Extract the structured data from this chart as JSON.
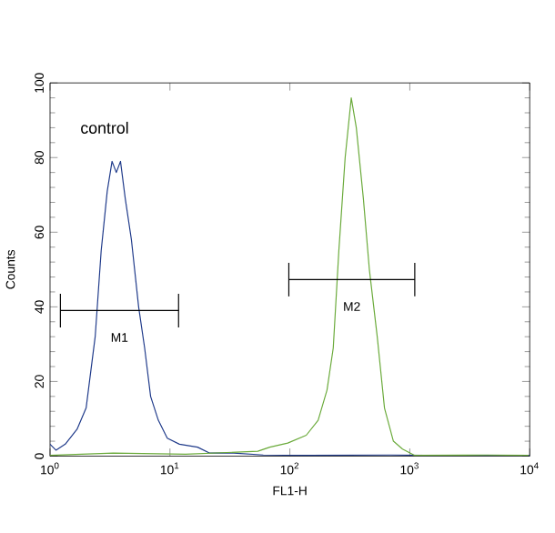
{
  "chart_data": {
    "type": "line",
    "xlabel": "FL1-H",
    "ylabel": "Counts",
    "log": "x",
    "xlim": [
      1,
      10000
    ],
    "ylim": [
      0,
      100
    ],
    "xticks": [
      {
        "value": 1,
        "label": "10$^{0}$"
      },
      {
        "value": 10,
        "label": "10$^{1}$"
      },
      {
        "value": 100,
        "label": "10$^{2}$"
      },
      {
        "value": 1000,
        "label": "10$^{3}$"
      },
      {
        "value": 10000,
        "label": "10$^{4}$"
      }
    ],
    "yticks": [
      0,
      20,
      40,
      60,
      80,
      100
    ],
    "grid": false,
    "marker": "none",
    "line_style": "solid",
    "series": [
      {
        "color": "#1f3a8a",
        "x": [
          1,
          1.12,
          1.34,
          1.68,
          2.0,
          2.38,
          2.67,
          3.0,
          3.29,
          3.57,
          3.87,
          4.24,
          4.77,
          5.48,
          6.15,
          6.9,
          8.0,
          9.5,
          12,
          17,
          21.5,
          34,
          60,
          137,
          690,
          1370,
          10000
        ],
        "values": [
          3.2,
          1.6,
          3.2,
          7.2,
          12.9,
          32,
          55,
          71,
          79,
          76,
          79,
          69,
          58,
          40,
          29,
          16,
          9.6,
          4.8,
          3.2,
          2.4,
          0.8,
          0.8,
          0.3,
          0.2,
          0.3,
          0.2,
          0.2
        ]
      },
      {
        "color": "#6aaa3a",
        "x": [
          1,
          3.37,
          13.5,
          54,
          68,
          96,
          137,
          172,
          204,
          230,
          256,
          289,
          325,
          358,
          410,
          460,
          535,
          615,
          730,
          870,
          1100,
          4400,
          9800
        ],
        "values": [
          0.2,
          0.8,
          0.5,
          1.3,
          2.4,
          3.5,
          5.6,
          9.6,
          17.7,
          29,
          55,
          80,
          96,
          88,
          69,
          50,
          32,
          12.9,
          4,
          1.9,
          0.2,
          0.3,
          0.2
        ]
      },
      {
        "color": "#000000",
        "x": [
          1.22,
          11.8
        ],
        "values": [
          39,
          39
        ],
        "errors": [
          4.5,
          4.5
        ]
      },
      {
        "color": "#000000",
        "x": [
          98,
          1100
        ],
        "values": [
          47.3,
          47.3
        ],
        "errors": [
          4.5,
          4.5
        ]
      }
    ],
    "annotations": [
      "control",
      "M1",
      "M2"
    ]
  }
}
